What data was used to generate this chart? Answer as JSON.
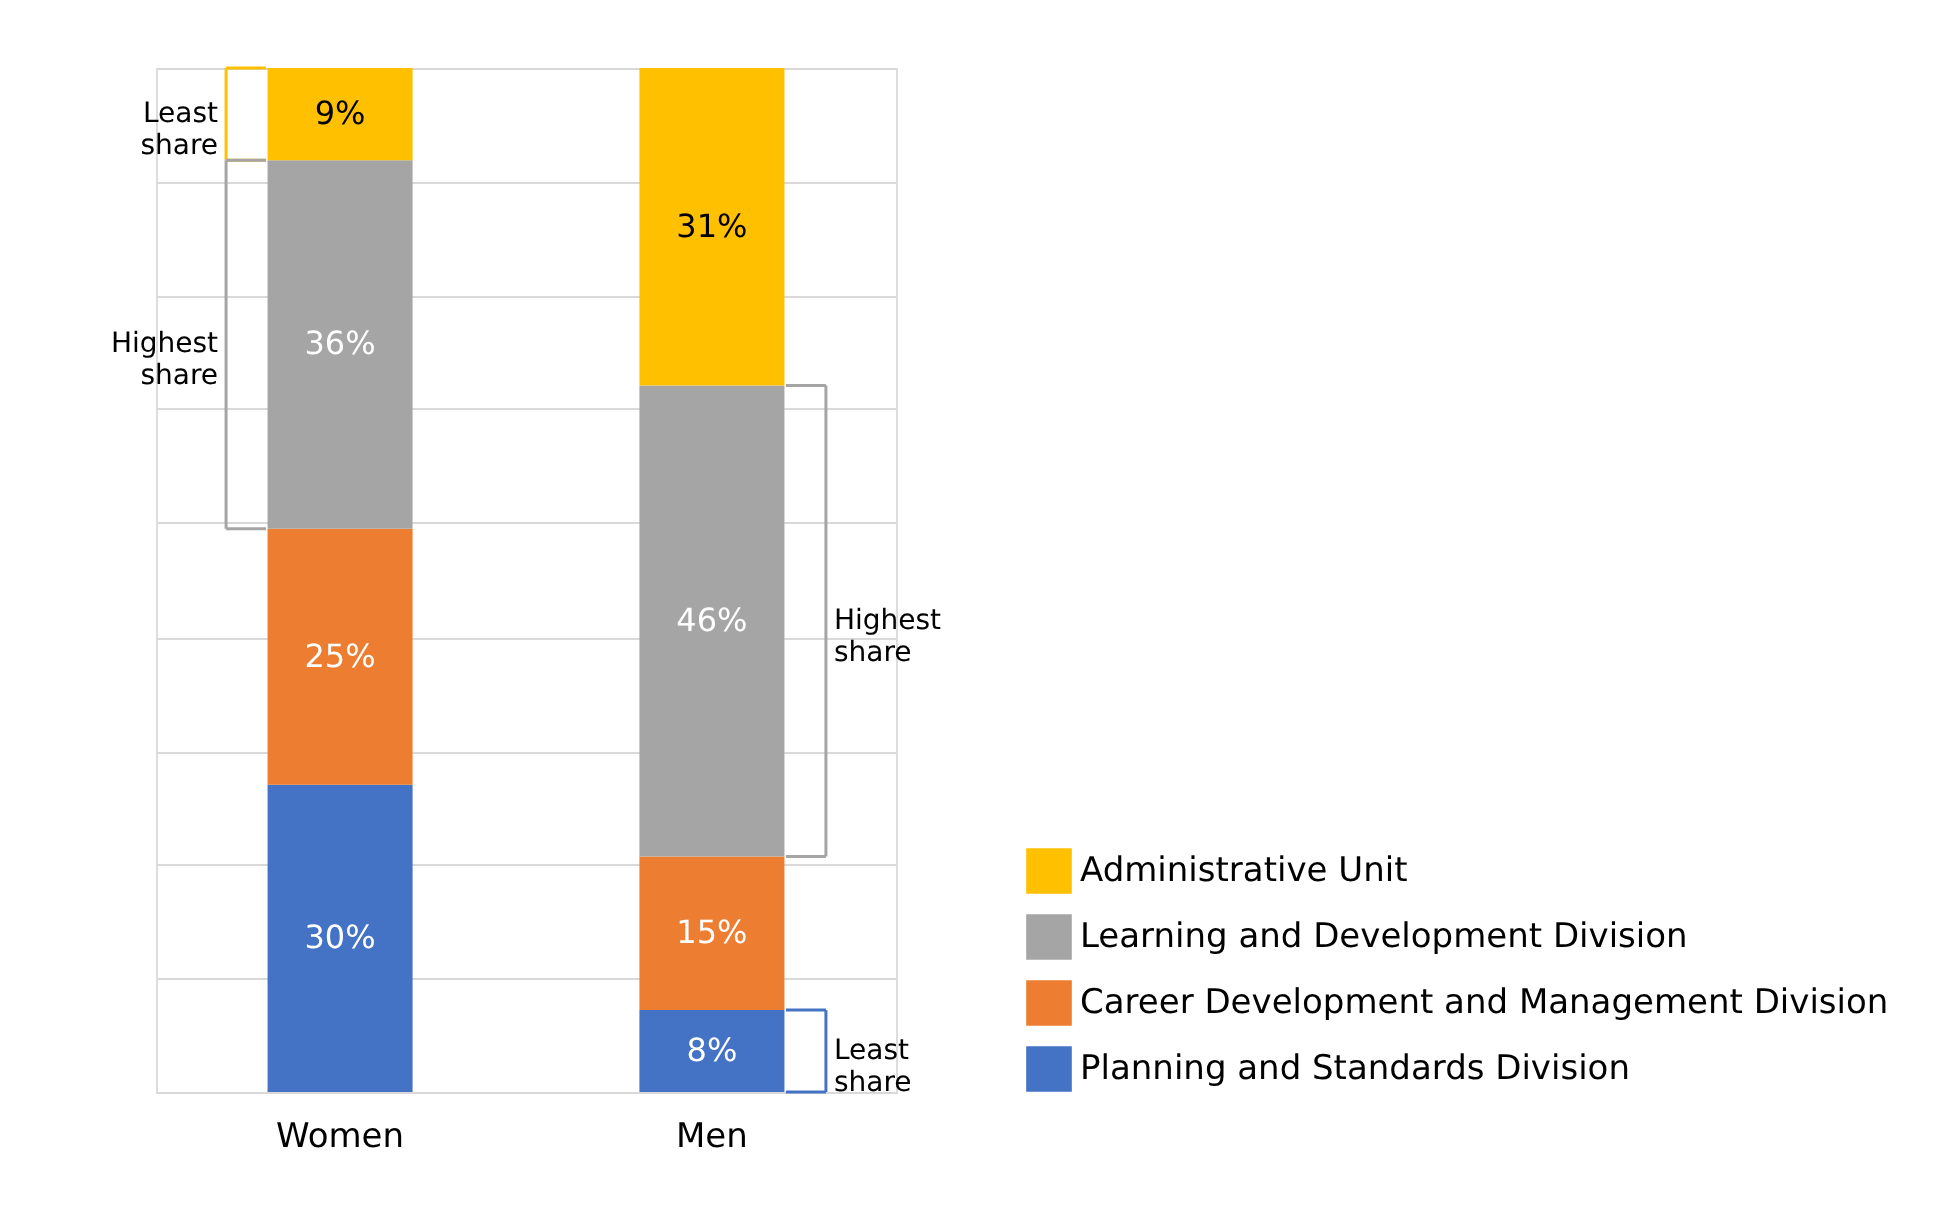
{
  "chart_data": {
    "type": "bar",
    "stacked": true,
    "categories": [
      "Women",
      "Men"
    ],
    "series": [
      {
        "name": "Planning and Standards Division",
        "color": "#4472c4",
        "values": [
          30,
          8
        ],
        "value_labels": [
          "30%",
          "8%"
        ]
      },
      {
        "name": "Career Development and Management Division",
        "color": "#ed7d31",
        "values": [
          25,
          15
        ],
        "value_labels": [
          "25%",
          "15%"
        ]
      },
      {
        "name": "Learning and Development Division",
        "color": "#a5a5a5",
        "values": [
          36,
          46
        ],
        "value_labels": [
          "36%",
          "46%"
        ]
      },
      {
        "name": "Administrative Unit",
        "color": "#ffc000",
        "values": [
          9,
          31
        ],
        "value_labels": [
          "9%",
          "31%"
        ]
      }
    ],
    "ylim": [
      0,
      100
    ],
    "yticks": [
      {
        "value": 0,
        "label": null
      },
      {
        "value": 11.1,
        "label": null
      },
      {
        "value": 22.2,
        "label": null
      },
      {
        "value": 33.3,
        "label": null
      },
      {
        "value": 44.4,
        "label": null
      },
      {
        "value": 55.6,
        "label": null
      },
      {
        "value": 66.7,
        "label": null
      },
      {
        "value": 77.8,
        "label": null
      },
      {
        "value": 88.9,
        "label": null
      },
      {
        "value": 100,
        "label": null
      }
    ],
    "grid": "y",
    "tick_labels": "x",
    "legend": "bottom right",
    "annotations": [
      "Least share",
      "Highest share",
      "Highest share",
      "Least share"
    ]
  }
}
